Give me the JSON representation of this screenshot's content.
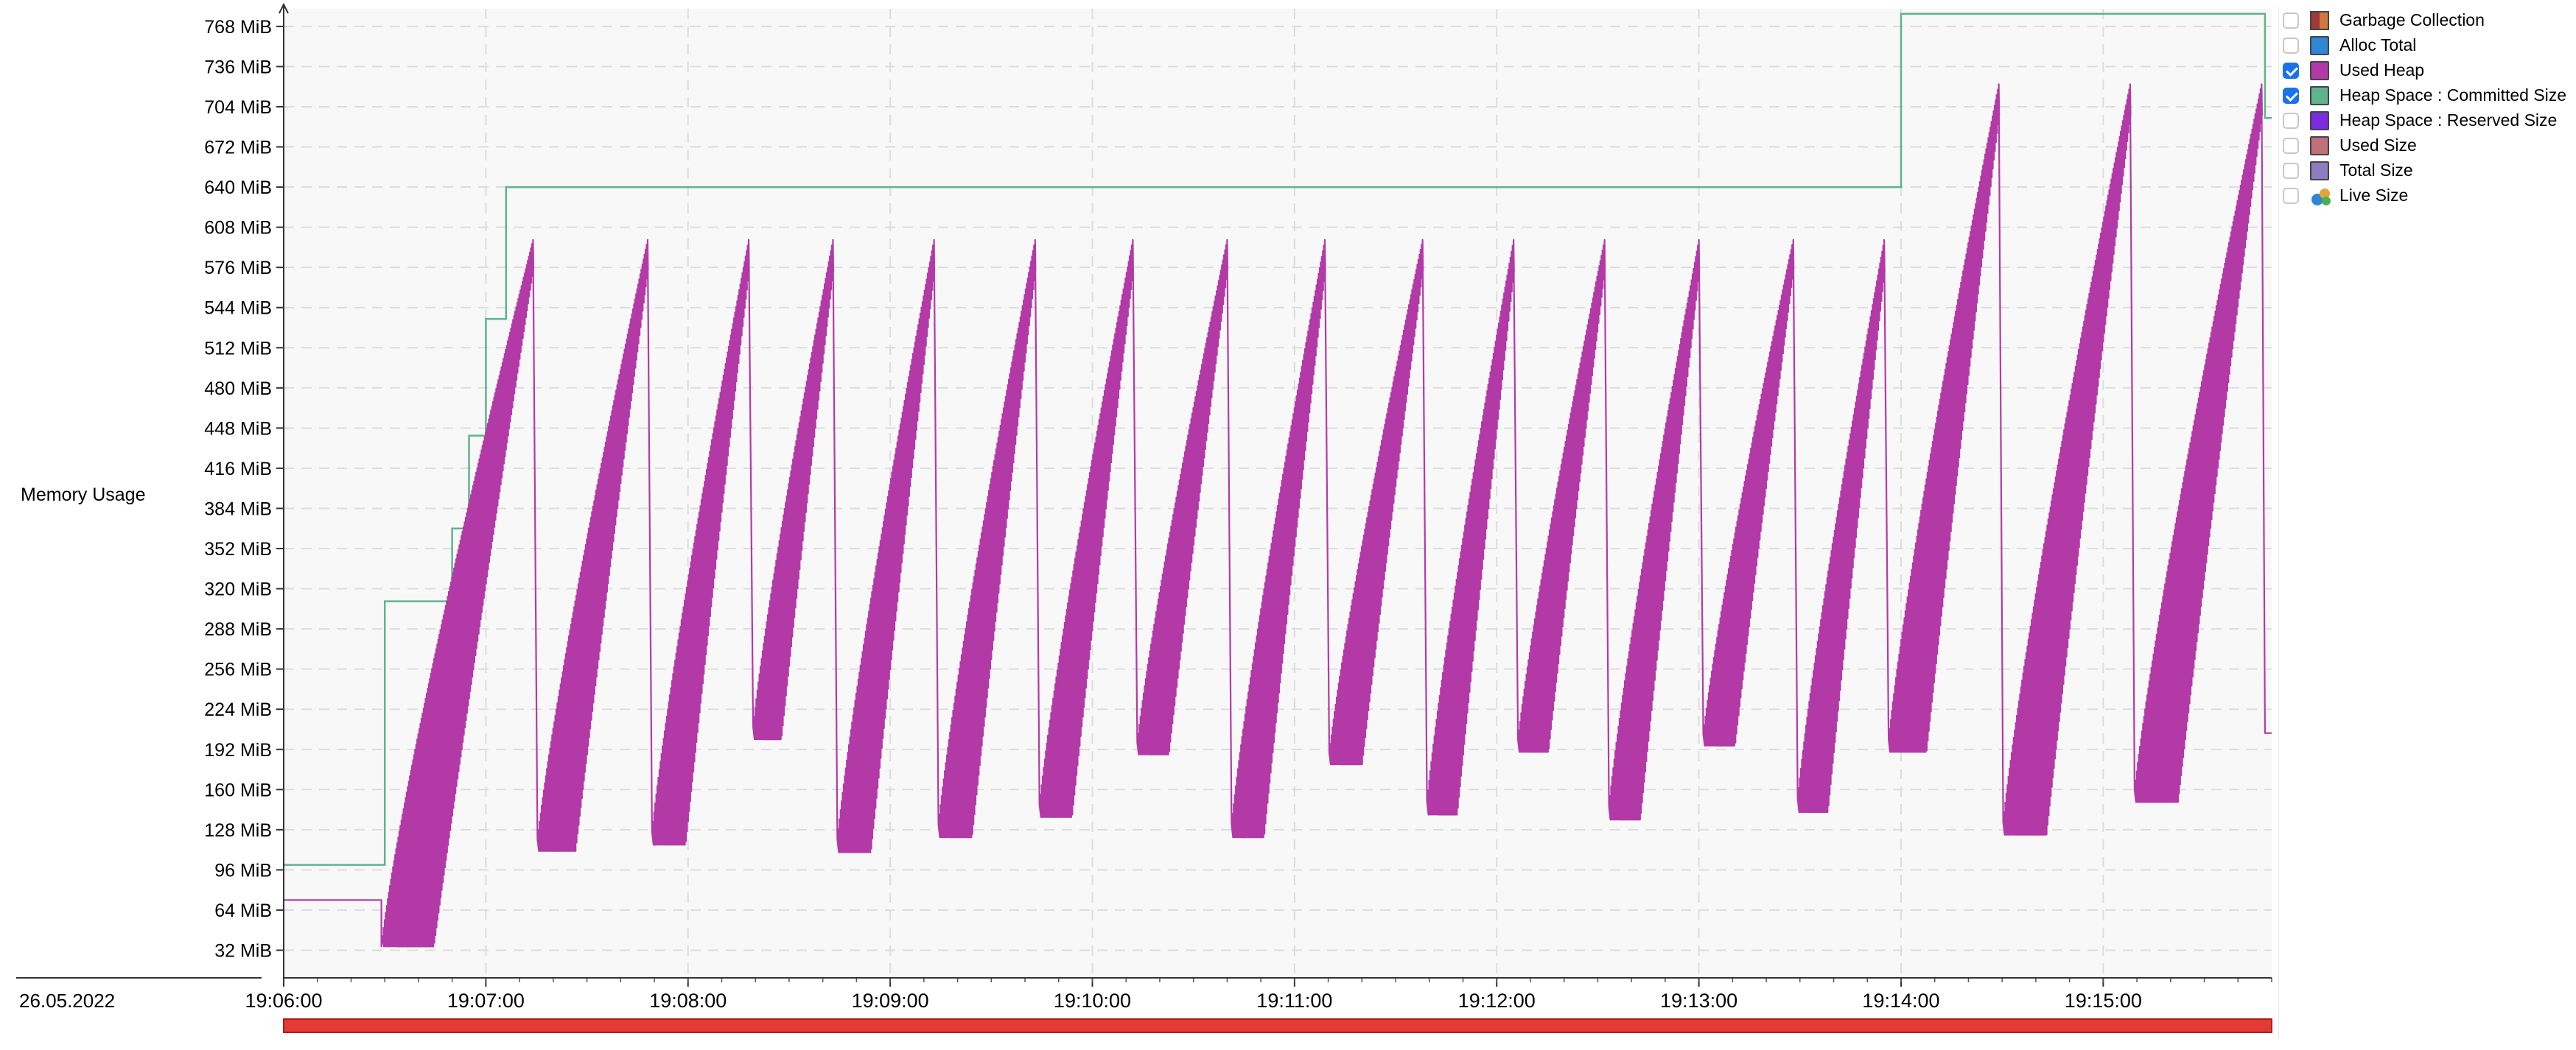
{
  "chart_data": {
    "type": "line",
    "ylabel": "Memory Usage",
    "y_unit": "MiB",
    "ylim": [
      10,
      782
    ],
    "yticks": [
      "32 MiB",
      "64 MiB",
      "96 MiB",
      "128 MiB",
      "160 MiB",
      "192 MiB",
      "224 MiB",
      "256 MiB",
      "288 MiB",
      "320 MiB",
      "352 MiB",
      "384 MiB",
      "416 MiB",
      "448 MiB",
      "480 MiB",
      "512 MiB",
      "544 MiB",
      "576 MiB",
      "608 MiB",
      "640 MiB",
      "672 MiB",
      "704 MiB",
      "736 MiB",
      "768 MiB"
    ],
    "ytick_values": [
      32,
      64,
      96,
      128,
      160,
      192,
      224,
      256,
      288,
      320,
      352,
      384,
      416,
      448,
      480,
      512,
      544,
      576,
      608,
      640,
      672,
      704,
      736,
      768
    ],
    "date_label": "26.05.2022",
    "xlim": [
      "19:06:00",
      "19:15:50"
    ],
    "xticks": [
      "19:06:00",
      "19:07:00",
      "19:08:00",
      "19:09:00",
      "19:10:00",
      "19:11:00",
      "19:12:00",
      "19:13:00",
      "19:14:00",
      "19:15:00"
    ],
    "grid": true,
    "legend_placement": "right",
    "series": [
      {
        "name": "Heap Space : Committed Size",
        "color": "#5fb38f",
        "style": "step",
        "points": [
          [
            "19:06:00",
            100
          ],
          [
            "19:06:30",
            100
          ],
          [
            "19:06:30",
            310
          ],
          [
            "19:06:50",
            310
          ],
          [
            "19:06:50",
            368
          ],
          [
            "19:06:55",
            368
          ],
          [
            "19:06:55",
            442
          ],
          [
            "19:07:00",
            442
          ],
          [
            "19:07:00",
            535
          ],
          [
            "19:07:06",
            535
          ],
          [
            "19:07:06",
            640
          ],
          [
            "19:14:00",
            640
          ],
          [
            "19:14:00",
            778
          ],
          [
            "19:15:48",
            778
          ],
          [
            "19:15:48",
            695
          ],
          [
            "19:15:50",
            695
          ]
        ]
      },
      {
        "name": "Used Heap",
        "color": "#b33aa6",
        "style": "sawtooth",
        "points": [
          [
            "19:06:00",
            72
          ],
          [
            "19:06:29",
            72
          ],
          [
            "19:06:29",
            35
          ],
          [
            "19:07:14",
            598
          ],
          [
            "19:07:15",
            111
          ],
          [
            "19:07:48",
            598
          ],
          [
            "19:07:49",
            116
          ],
          [
            "19:08:18",
            598
          ],
          [
            "19:08:19",
            200
          ],
          [
            "19:08:43",
            598
          ],
          [
            "19:08:44",
            110
          ],
          [
            "19:09:13",
            598
          ],
          [
            "19:09:14",
            122
          ],
          [
            "19:09:43",
            598
          ],
          [
            "19:09:44",
            138
          ],
          [
            "19:10:12",
            598
          ],
          [
            "19:10:13",
            188
          ],
          [
            "19:10:40",
            598
          ],
          [
            "19:10:41",
            122
          ],
          [
            "19:11:09",
            598
          ],
          [
            "19:11:10",
            180
          ],
          [
            "19:11:38",
            598
          ],
          [
            "19:11:39",
            140
          ],
          [
            "19:12:05",
            598
          ],
          [
            "19:12:06",
            190
          ],
          [
            "19:12:32",
            598
          ],
          [
            "19:12:33",
            136
          ],
          [
            "19:13:00",
            598
          ],
          [
            "19:13:01",
            195
          ],
          [
            "19:13:28",
            598
          ],
          [
            "19:13:29",
            142
          ],
          [
            "19:13:55",
            598
          ],
          [
            "19:13:56",
            190
          ],
          [
            "19:14:29",
            722
          ],
          [
            "19:14:30",
            124
          ],
          [
            "19:15:08",
            722
          ],
          [
            "19:15:09",
            150
          ],
          [
            "19:15:47",
            722
          ],
          [
            "19:15:48",
            205
          ],
          [
            "19:15:50",
            205
          ]
        ]
      }
    ]
  },
  "legend": [
    {
      "label": "Garbage Collection",
      "checked": false,
      "icon": "gc-icon",
      "color": "#9e3b3b"
    },
    {
      "label": "Alloc Total",
      "checked": false,
      "icon": "swatch",
      "color": "#2f86d6"
    },
    {
      "label": "Used Heap",
      "checked": true,
      "icon": "swatch",
      "color": "#b33aa6"
    },
    {
      "label": "Heap Space : Committed Size",
      "checked": true,
      "icon": "swatch",
      "color": "#5fb38f"
    },
    {
      "label": "Heap Space : Reserved Size",
      "checked": false,
      "icon": "swatch",
      "color": "#7b2be0"
    },
    {
      "label": "Used Size",
      "checked": false,
      "icon": "swatch",
      "color": "#c0707a"
    },
    {
      "label": "Total Size",
      "checked": false,
      "icon": "swatch",
      "color": "#8d7cc0"
    },
    {
      "label": "Live Size",
      "checked": false,
      "icon": "live-icon",
      "color": "#e0a53a"
    }
  ],
  "timeline_bar_color": "#e53935"
}
